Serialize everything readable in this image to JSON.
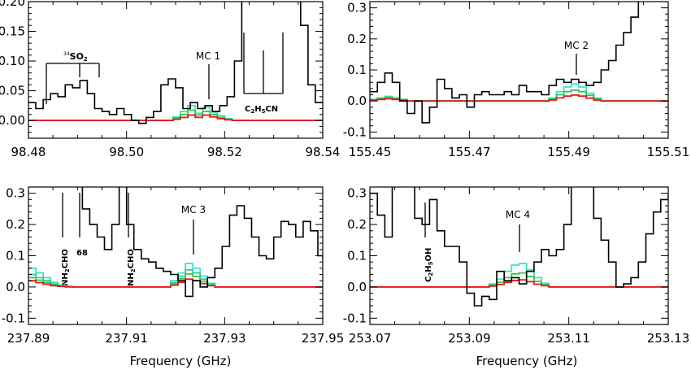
{
  "colors": {
    "observed": "#000000",
    "red_model": "#e8141c",
    "green_model": "#2ecc40",
    "cyan_model": "#33e6cc",
    "seafoam_model": "#33c99a"
  },
  "chart_data": [
    {
      "type": "line",
      "step": true,
      "xlabel": "",
      "xlim": [
        98.48,
        98.54
      ],
      "ylim": [
        -0.03,
        0.2
      ],
      "xticks": [
        98.48,
        98.5,
        98.52,
        98.54
      ],
      "xtick_labels": [
        "98.48",
        "98.50",
        "98.52",
        "98.54"
      ],
      "yticks": [
        0.0,
        0.05,
        0.1,
        0.15,
        0.2
      ],
      "ytick_labels": [
        "0.00",
        "0.05",
        "0.10",
        "0.15",
        "0.20"
      ],
      "series": [
        {
          "role": "observed",
          "x": [
            98.48,
            98.4815,
            98.483,
            98.4845,
            98.486,
            98.4875,
            98.489,
            98.4905,
            98.492,
            98.4935,
            98.495,
            98.4965,
            98.498,
            98.4995,
            98.501,
            98.5025,
            98.504,
            98.5055,
            98.507,
            98.5085,
            98.51,
            98.5115,
            98.513,
            98.5145,
            98.516,
            98.5175,
            98.519,
            98.5205,
            98.522,
            98.5235,
            98.525,
            98.5265,
            98.528,
            98.5295,
            98.531,
            98.5325,
            98.534,
            98.5355,
            98.537,
            98.5385,
            98.54
          ],
          "y": [
            0.03,
            0.02,
            0.035,
            0.045,
            0.04,
            0.06,
            0.055,
            0.067,
            0.045,
            0.02,
            0.015,
            0.01,
            0.02,
            0.01,
            0.0,
            -0.005,
            0.005,
            0.015,
            0.06,
            0.07,
            0.055,
            0.02,
            0.03,
            0.02,
            0.025,
            0.015,
            0.025,
            0.04,
            0.1,
            0.21,
            0.21,
            0.21,
            0.21,
            0.21,
            0.21,
            0.21,
            0.21,
            0.16,
            0.06,
            0.03,
            0.03
          ]
        },
        {
          "role": "cyan",
          "x": [
            98.48,
            98.508,
            98.5095,
            98.511,
            98.5125,
            98.514,
            98.5155,
            98.517,
            98.5185,
            98.52,
            98.5215,
            98.54
          ],
          "y": [
            0.0,
            0.0,
            0.006,
            0.015,
            0.025,
            0.012,
            0.022,
            0.014,
            0.008,
            0.003,
            0.0,
            0.0
          ]
        },
        {
          "role": "green",
          "x": [
            98.48,
            98.508,
            98.5095,
            98.511,
            98.5125,
            98.514,
            98.5155,
            98.517,
            98.5185,
            98.52,
            98.5215,
            98.54
          ],
          "y": [
            0.0,
            0.0,
            0.004,
            0.01,
            0.017,
            0.009,
            0.015,
            0.01,
            0.005,
            0.002,
            0.0,
            0.0
          ]
        },
        {
          "role": "red",
          "x": [
            98.48,
            98.508,
            98.5095,
            98.511,
            98.5125,
            98.514,
            98.5155,
            98.517,
            98.5185,
            98.52,
            98.5215,
            98.54
          ],
          "y": [
            0.0,
            0.0,
            0.002,
            0.005,
            0.009,
            0.005,
            0.009,
            0.006,
            0.003,
            0.001,
            0.0,
            0.0
          ]
        }
      ],
      "annotations": [
        {
          "text": "MC 1",
          "x": 98.516,
          "y": 0.21
        },
        {
          "text": "C2H5CN",
          "x": 98.5285,
          "y": 0.03
        },
        {
          "text": "34SO2",
          "x": 98.4885,
          "y": 0.22
        }
      ]
    },
    {
      "type": "line",
      "step": true,
      "xlabel": "",
      "xlim": [
        155.45,
        155.51
      ],
      "ylim": [
        -0.12,
        0.32
      ],
      "xticks": [
        155.45,
        155.47,
        155.49,
        155.51
      ],
      "xtick_labels": [
        "155.45",
        "155.47",
        "155.49",
        "155.51"
      ],
      "yticks": [
        -0.1,
        0.0,
        0.1,
        0.2,
        0.3
      ],
      "ytick_labels": [
        "-0.1",
        "0.0",
        "0.1",
        "0.2",
        "0.3"
      ],
      "series": [
        {
          "role": "observed",
          "x": [
            155.45,
            155.4515,
            155.453,
            155.4545,
            155.456,
            155.4575,
            155.459,
            155.4605,
            155.462,
            155.4635,
            155.465,
            155.4665,
            155.468,
            155.4695,
            155.471,
            155.4725,
            155.474,
            155.4755,
            155.477,
            155.4785,
            155.48,
            155.4815,
            155.483,
            155.4845,
            155.486,
            155.4875,
            155.489,
            155.4905,
            155.492,
            155.4935,
            155.495,
            155.4965,
            155.498,
            155.4995,
            155.501,
            155.5025,
            155.504,
            155.5055,
            155.507,
            155.5085,
            155.51
          ],
          "y": [
            0.03,
            0.06,
            0.09,
            0.06,
            0.0,
            -0.04,
            0.0,
            -0.07,
            -0.02,
            0.07,
            0.04,
            0.01,
            0.02,
            -0.02,
            0.02,
            0.03,
            0.02,
            0.02,
            0.03,
            0.02,
            0.05,
            0.03,
            0.03,
            0.02,
            0.05,
            0.07,
            0.06,
            0.07,
            0.06,
            0.05,
            0.06,
            0.1,
            0.13,
            0.18,
            0.22,
            0.27,
            0.33,
            0.33,
            0.33,
            0.33,
            0.33
          ]
        },
        {
          "role": "cyan",
          "x": [
            155.45,
            155.4515,
            155.453,
            155.4545,
            155.456,
            155.4575,
            155.459,
            155.4605,
            155.4845,
            155.486,
            155.4875,
            155.489,
            155.4905,
            155.492,
            155.4935,
            155.495,
            155.4965,
            155.51
          ],
          "y": [
            0.005,
            0.01,
            0.015,
            0.01,
            0.005,
            0.0,
            0.0,
            0.0,
            0.0,
            0.01,
            0.03,
            0.045,
            0.055,
            0.045,
            0.025,
            0.01,
            0.0,
            0.0
          ]
        },
        {
          "role": "green",
          "x": [
            155.45,
            155.4515,
            155.453,
            155.4545,
            155.456,
            155.4575,
            155.459,
            155.4605,
            155.4845,
            155.486,
            155.4875,
            155.489,
            155.4905,
            155.492,
            155.4935,
            155.495,
            155.4965,
            155.51
          ],
          "y": [
            0.004,
            0.008,
            0.012,
            0.008,
            0.004,
            0.0,
            0.0,
            0.0,
            0.0,
            0.006,
            0.02,
            0.03,
            0.035,
            0.03,
            0.018,
            0.006,
            0.0,
            0.0
          ]
        },
        {
          "role": "red",
          "x": [
            155.45,
            155.4515,
            155.453,
            155.4545,
            155.456,
            155.4575,
            155.459,
            155.4605,
            155.4845,
            155.486,
            155.4875,
            155.489,
            155.4905,
            155.492,
            155.4935,
            155.495,
            155.4965,
            155.51
          ],
          "y": [
            0.002,
            0.005,
            0.007,
            0.005,
            0.002,
            0.0,
            0.0,
            0.0,
            0.0,
            0.003,
            0.01,
            0.016,
            0.019,
            0.016,
            0.009,
            0.003,
            0.0,
            0.0
          ]
        }
      ],
      "annotations": [
        {
          "text": "MC 2",
          "x": 155.491,
          "y": 0.22
        }
      ]
    },
    {
      "type": "line",
      "step": true,
      "xlabel": "Frequency (GHz)",
      "xlim": [
        237.89,
        237.95
      ],
      "ylim": [
        -0.12,
        0.32
      ],
      "xticks": [
        237.89,
        237.91,
        237.93,
        237.95
      ],
      "xtick_labels": [
        "237.89",
        "237.91",
        "237.93",
        "237.95"
      ],
      "yticks": [
        -0.1,
        0.0,
        0.1,
        0.2,
        0.3
      ],
      "ytick_labels": [
        "-0.1",
        "0.0",
        "0.1",
        "0.2",
        "0.3"
      ],
      "series": [
        {
          "role": "observed",
          "x": [
            237.8995,
            237.901,
            237.9025,
            237.904,
            237.9055,
            237.907,
            237.9085,
            237.91,
            237.9115,
            237.913,
            237.9145,
            237.916,
            237.9175,
            237.919,
            237.9205,
            237.922,
            237.9235,
            237.925,
            237.9265,
            237.928,
            237.9295,
            237.931,
            237.9325,
            237.934,
            237.9355,
            237.937,
            237.9385,
            237.94,
            237.9415,
            237.943,
            237.9445,
            237.946,
            237.9475,
            237.949,
            237.95
          ],
          "y": [
            0.33,
            0.25,
            0.2,
            0.16,
            0.12,
            0.2,
            0.33,
            0.2,
            0.12,
            0.09,
            0.08,
            0.06,
            0.05,
            0.04,
            0.02,
            -0.03,
            0.02,
            0.0,
            0.03,
            0.06,
            0.13,
            0.23,
            0.26,
            0.22,
            0.16,
            0.1,
            0.09,
            0.16,
            0.21,
            0.2,
            0.16,
            0.21,
            0.18,
            0.1,
            0.09
          ]
        },
        {
          "role": "cyan",
          "x": [
            237.89,
            237.8915,
            237.893,
            237.8945,
            237.896,
            237.8975,
            237.899,
            237.9175,
            237.919,
            237.9205,
            237.922,
            237.9235,
            237.925,
            237.9265,
            237.928,
            237.95
          ],
          "y": [
            0.06,
            0.045,
            0.03,
            0.015,
            0.006,
            0.002,
            0.0,
            0.0,
            0.02,
            0.045,
            0.075,
            0.06,
            0.035,
            0.012,
            0.0,
            0.0
          ]
        },
        {
          "role": "seafoam",
          "x": [
            237.89,
            237.8915,
            237.893,
            237.8945,
            237.896,
            237.8975,
            237.899,
            237.9175,
            237.919,
            237.9205,
            237.922,
            237.9235,
            237.925,
            237.9265,
            237.928,
            237.95
          ],
          "y": [
            0.04,
            0.03,
            0.02,
            0.01,
            0.004,
            0.001,
            0.0,
            0.0,
            0.014,
            0.035,
            0.055,
            0.045,
            0.025,
            0.009,
            0.0,
            0.0
          ]
        },
        {
          "role": "green",
          "x": [
            237.89,
            237.8915,
            237.893,
            237.8945,
            237.896,
            237.8975,
            237.899,
            237.9175,
            237.919,
            237.9205,
            237.922,
            237.9235,
            237.925,
            237.9265,
            237.928,
            237.95
          ],
          "y": [
            0.03,
            0.022,
            0.014,
            0.007,
            0.003,
            0.001,
            0.0,
            0.0,
            0.01,
            0.026,
            0.042,
            0.034,
            0.018,
            0.006,
            0.0,
            0.0
          ]
        },
        {
          "role": "red",
          "x": [
            237.89,
            237.8915,
            237.893,
            237.8945,
            237.896,
            237.8975,
            237.899,
            237.9175,
            237.919,
            237.9205,
            237.922,
            237.9235,
            237.925,
            237.9265,
            237.928,
            237.95
          ],
          "y": [
            0.02,
            0.014,
            0.009,
            0.004,
            0.002,
            0.0,
            0.0,
            0.0,
            0.006,
            0.015,
            0.025,
            0.02,
            0.011,
            0.004,
            0.0,
            0.0
          ]
        }
      ],
      "annotations": [
        {
          "text": "MC 3",
          "x": 237.9225,
          "y": 0.22
        },
        {
          "text": "NH2CHO",
          "x": 237.8945
        },
        {
          "text": "68",
          "x": 237.8985
        },
        {
          "text": "NH2CHO",
          "x": 237.909
        }
      ]
    },
    {
      "type": "line",
      "step": true,
      "xlabel": "Frequency (GHz)",
      "xlim": [
        253.07,
        253.13
      ],
      "ylim": [
        -0.12,
        0.32
      ],
      "xticks": [
        253.07,
        253.09,
        253.11,
        253.13
      ],
      "xtick_labels": [
        "253.07",
        "253.09",
        "253.11",
        "253.13"
      ],
      "yticks": [
        -0.1,
        0.0,
        0.1,
        0.2,
        0.3
      ],
      "ytick_labels": [
        "-0.1",
        "0.0",
        "0.1",
        "0.2",
        "0.3"
      ],
      "series": [
        {
          "role": "observed",
          "x": [
            253.07,
            253.0715,
            253.073,
            253.0745,
            253.076,
            253.0775,
            253.079,
            253.0805,
            253.082,
            253.0835,
            253.085,
            253.0865,
            253.088,
            253.0895,
            253.091,
            253.0925,
            253.094,
            253.0955,
            253.097,
            253.0985,
            253.1,
            253.1015,
            253.103,
            253.1045,
            253.106,
            253.1075,
            253.109,
            253.1105,
            253.112,
            253.1135,
            253.115,
            253.1165,
            253.118,
            253.1195,
            253.121,
            253.1225,
            253.124,
            253.1255,
            253.127,
            253.1285,
            253.13
          ],
          "y": [
            0.3,
            0.23,
            0.16,
            0.33,
            0.33,
            0.33,
            0.22,
            0.2,
            0.28,
            0.18,
            0.13,
            0.13,
            0.08,
            -0.02,
            -0.06,
            -0.03,
            -0.04,
            0.05,
            0.02,
            0.03,
            0.01,
            0.05,
            0.08,
            0.12,
            0.1,
            0.12,
            0.2,
            0.33,
            0.33,
            0.33,
            0.22,
            0.15,
            0.08,
            0.0,
            0.01,
            0.03,
            0.08,
            0.17,
            0.24,
            0.28,
            0.3
          ]
        },
        {
          "role": "cyan",
          "x": [
            253.07,
            253.0925,
            253.094,
            253.0955,
            253.097,
            253.0985,
            253.1,
            253.1015,
            253.103,
            253.1045,
            253.106,
            253.13
          ],
          "y": [
            0.0,
            0.0,
            0.01,
            0.025,
            0.05,
            0.07,
            0.075,
            0.055,
            0.03,
            0.012,
            0.0,
            0.0
          ]
        },
        {
          "role": "green",
          "x": [
            253.07,
            253.0925,
            253.094,
            253.0955,
            253.097,
            253.0985,
            253.1,
            253.1015,
            253.103,
            253.1045,
            253.106,
            253.13
          ],
          "y": [
            0.0,
            0.0,
            0.006,
            0.015,
            0.03,
            0.042,
            0.045,
            0.034,
            0.018,
            0.007,
            0.0,
            0.0
          ]
        },
        {
          "role": "red",
          "x": [
            253.07,
            253.0925,
            253.094,
            253.0955,
            253.097,
            253.0985,
            253.1,
            253.1015,
            253.103,
            253.1045,
            253.106,
            253.13
          ],
          "y": [
            0.0,
            0.0,
            0.003,
            0.008,
            0.015,
            0.021,
            0.023,
            0.017,
            0.009,
            0.004,
            0.0,
            0.0
          ]
        }
      ],
      "annotations": [
        {
          "text": "MC 4",
          "x": 253.0995,
          "y": 0.22
        },
        {
          "text": "C2H5OH",
          "x": 253.0785
        }
      ]
    }
  ]
}
